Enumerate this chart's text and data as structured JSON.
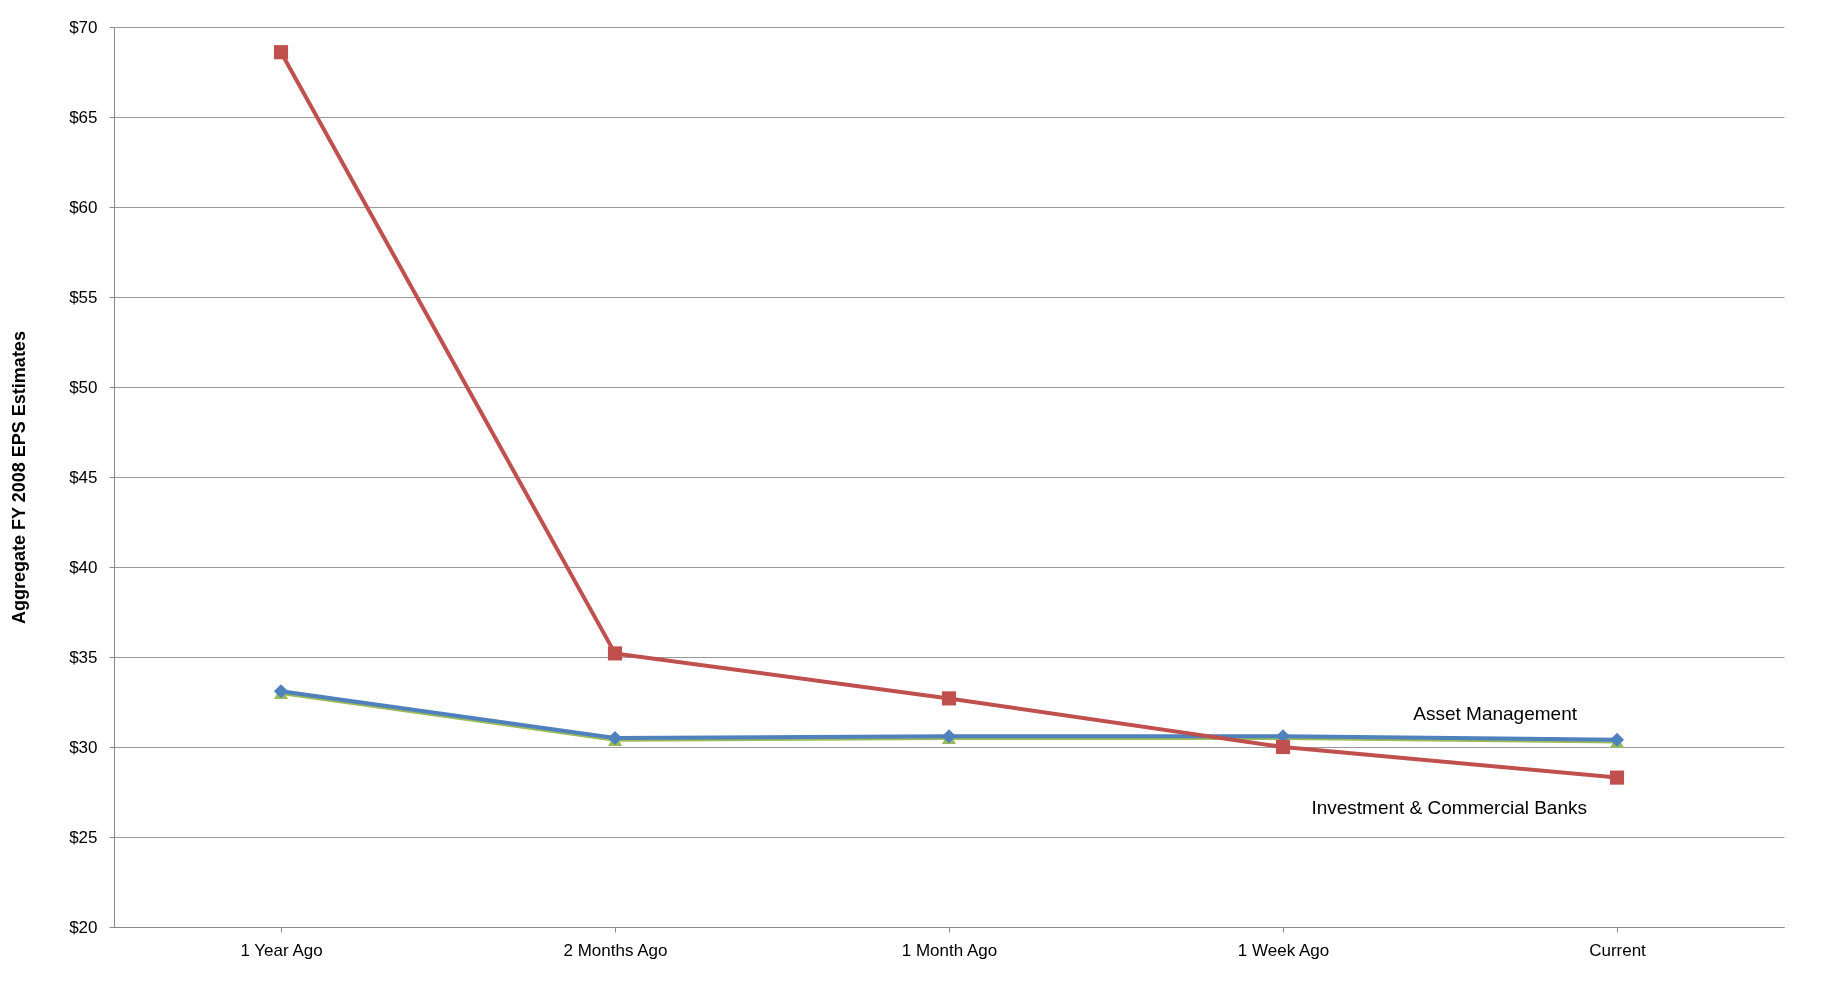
{
  "chart_data": {
    "type": "line",
    "ylabel": "Aggregate  FY 2008  EPS Estimates",
    "categories": [
      "1 Year Ago",
      "2 Months Ago",
      "1 Month Ago",
      "1 Week Ago",
      "Current"
    ],
    "series": [
      {
        "color": "#9bbb59",
        "marker": "triangle",
        "values": [
          33.0,
          30.4,
          30.5,
          30.5,
          30.3
        ]
      },
      {
        "name": "Asset Management",
        "color": "#4f81bd",
        "marker": "diamond",
        "values": [
          33.1,
          30.5,
          30.6,
          30.6,
          30.4
        ]
      },
      {
        "name": "Investment & Commercial Banks",
        "color": "#c0504d",
        "marker": "square",
        "values": [
          68.6,
          35.2,
          32.7,
          30.0,
          28.3
        ]
      }
    ],
    "ylim": [
      20,
      70
    ],
    "yticks": [
      {
        "value": 20,
        "label": "$20"
      },
      {
        "value": 25,
        "label": "$25"
      },
      {
        "value": 30,
        "label": "$30"
      },
      {
        "value": 35,
        "label": "$35"
      },
      {
        "value": 40,
        "label": "$40"
      },
      {
        "value": 45,
        "label": "$45"
      },
      {
        "value": 50,
        "label": "$50"
      },
      {
        "value": 55,
        "label": "$55"
      },
      {
        "value": 60,
        "label": "$60"
      },
      {
        "value": 65,
        "label": "$65"
      },
      {
        "value": 70,
        "label": "$70"
      }
    ],
    "grid": "y",
    "line_style": "solid"
  }
}
